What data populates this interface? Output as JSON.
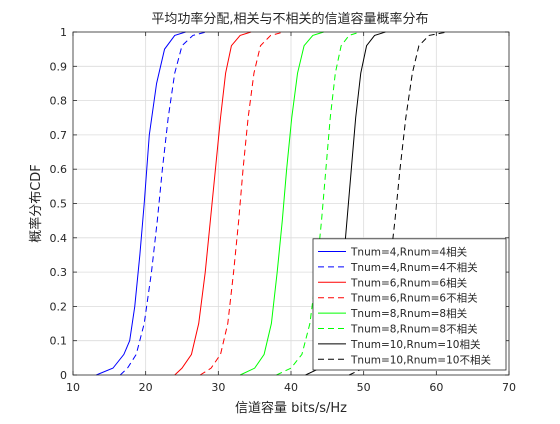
{
  "chart_data": {
    "type": "line",
    "title": "平均功率分配,相关与不相关的信道容量概率分布",
    "xlabel": "信道容量 bits/s/Hz",
    "ylabel": "概率分布CDF",
    "xlim": [
      10,
      70
    ],
    "ylim": [
      0,
      1
    ],
    "xticks": [
      10,
      20,
      30,
      40,
      50,
      60,
      70
    ],
    "yticks": [
      0,
      0.1,
      0.2,
      0.3,
      0.4,
      0.5,
      0.6,
      0.7,
      0.8,
      0.9,
      1
    ],
    "grid": true,
    "legend_position": "lower-right",
    "series": [
      {
        "name": "Tnum=4,Rnum=4相关",
        "color": "#0000ff",
        "dash": "solid",
        "x": [
          13.2,
          15.5,
          17.0,
          17.8,
          18.5,
          19.2,
          19.8,
          20.5,
          21.5,
          22.6,
          24.0,
          25.5
        ],
        "y": [
          0,
          0.02,
          0.06,
          0.1,
          0.2,
          0.35,
          0.5,
          0.7,
          0.85,
          0.95,
          0.99,
          1
        ]
      },
      {
        "name": "Tnum=4,Rnum=4不相关",
        "color": "#0000ff",
        "dash": "dashed",
        "x": [
          16.5,
          17.5,
          18.7,
          19.8,
          20.8,
          21.6,
          22.3,
          23.1,
          24.0,
          25.0,
          26.5,
          28.3
        ],
        "y": [
          0,
          0.02,
          0.06,
          0.15,
          0.3,
          0.45,
          0.6,
          0.75,
          0.88,
          0.96,
          0.99,
          1
        ]
      },
      {
        "name": "Tnum=6,Rnum=6相关",
        "color": "#ff0000",
        "dash": "solid",
        "x": [
          24.0,
          25.0,
          26.3,
          27.3,
          28.2,
          28.9,
          29.6,
          30.3,
          31.0,
          31.8,
          33.0,
          34.5
        ],
        "y": [
          0,
          0.02,
          0.06,
          0.15,
          0.3,
          0.45,
          0.6,
          0.75,
          0.88,
          0.96,
          0.99,
          1
        ]
      },
      {
        "name": "Tnum=6,Rnum=6不相关",
        "color": "#ff0000",
        "dash": "dashed",
        "x": [
          27.5,
          29.0,
          30.3,
          31.3,
          32.1,
          32.8,
          33.4,
          34.1,
          34.9,
          35.8,
          37.2,
          39.0
        ],
        "y": [
          0,
          0.02,
          0.06,
          0.15,
          0.3,
          0.45,
          0.6,
          0.75,
          0.88,
          0.96,
          0.99,
          1
        ]
      },
      {
        "name": "Tnum=8,Rnum=8相关",
        "color": "#00ff00",
        "dash": "solid",
        "x": [
          33.0,
          35.0,
          36.3,
          37.3,
          38.1,
          38.8,
          39.4,
          40.1,
          40.9,
          41.8,
          43.0,
          44.5
        ],
        "y": [
          0,
          0.02,
          0.06,
          0.15,
          0.3,
          0.45,
          0.6,
          0.75,
          0.88,
          0.96,
          0.99,
          1
        ]
      },
      {
        "name": "Tnum=8,Rnum=8不相关",
        "color": "#00ff00",
        "dash": "dashed",
        "x": [
          38.0,
          40.0,
          41.5,
          42.6,
          43.5,
          44.2,
          44.8,
          45.4,
          46.1,
          46.9,
          48.0,
          49.5
        ],
        "y": [
          0,
          0.02,
          0.06,
          0.15,
          0.3,
          0.45,
          0.6,
          0.75,
          0.88,
          0.96,
          0.99,
          1
        ]
      },
      {
        "name": "Tnum=10,Rnum=10相关",
        "color": "#000000",
        "dash": "solid",
        "x": [
          42.0,
          44.0,
          45.3,
          46.3,
          47.1,
          47.7,
          48.3,
          48.9,
          49.6,
          50.4,
          51.5,
          53.0
        ],
        "y": [
          0,
          0.02,
          0.06,
          0.15,
          0.3,
          0.45,
          0.6,
          0.75,
          0.88,
          0.96,
          0.99,
          1
        ]
      },
      {
        "name": "Tnum=10,Rnum=10不相关",
        "color": "#000000",
        "dash": "dashed",
        "x": [
          48.0,
          50.0,
          51.5,
          52.6,
          53.5,
          54.3,
          55.0,
          55.8,
          56.7,
          57.6,
          59.0,
          61.5
        ],
        "y": [
          0,
          0.02,
          0.06,
          0.15,
          0.3,
          0.45,
          0.6,
          0.75,
          0.88,
          0.96,
          0.99,
          1
        ]
      }
    ]
  }
}
